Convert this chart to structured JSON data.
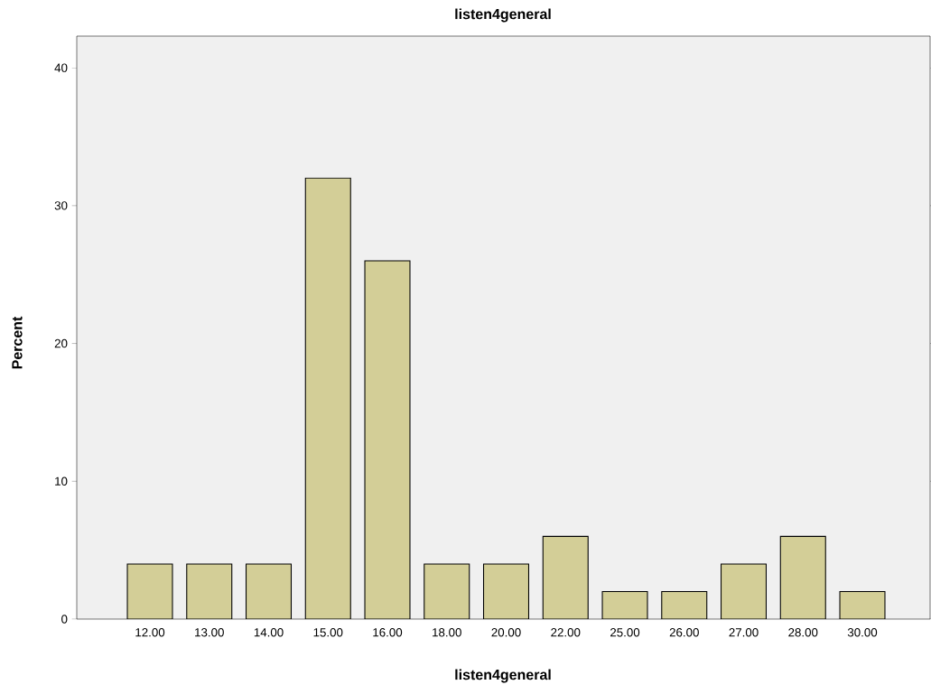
{
  "chart_data": {
    "type": "bar",
    "title": "listen4general",
    "xlabel": "listen4general",
    "ylabel": "Percent",
    "categories": [
      "12.00",
      "13.00",
      "14.00",
      "15.00",
      "16.00",
      "18.00",
      "20.00",
      "22.00",
      "25.00",
      "26.00",
      "27.00",
      "28.00",
      "30.00"
    ],
    "values": [
      4,
      4,
      4,
      32,
      26,
      4,
      4,
      6,
      2,
      2,
      4,
      6,
      2
    ],
    "color": "#d3ce97",
    "ylim": [
      0,
      42.3
    ],
    "yticks": [
      0,
      10,
      20,
      30,
      40
    ],
    "grid": false
  }
}
